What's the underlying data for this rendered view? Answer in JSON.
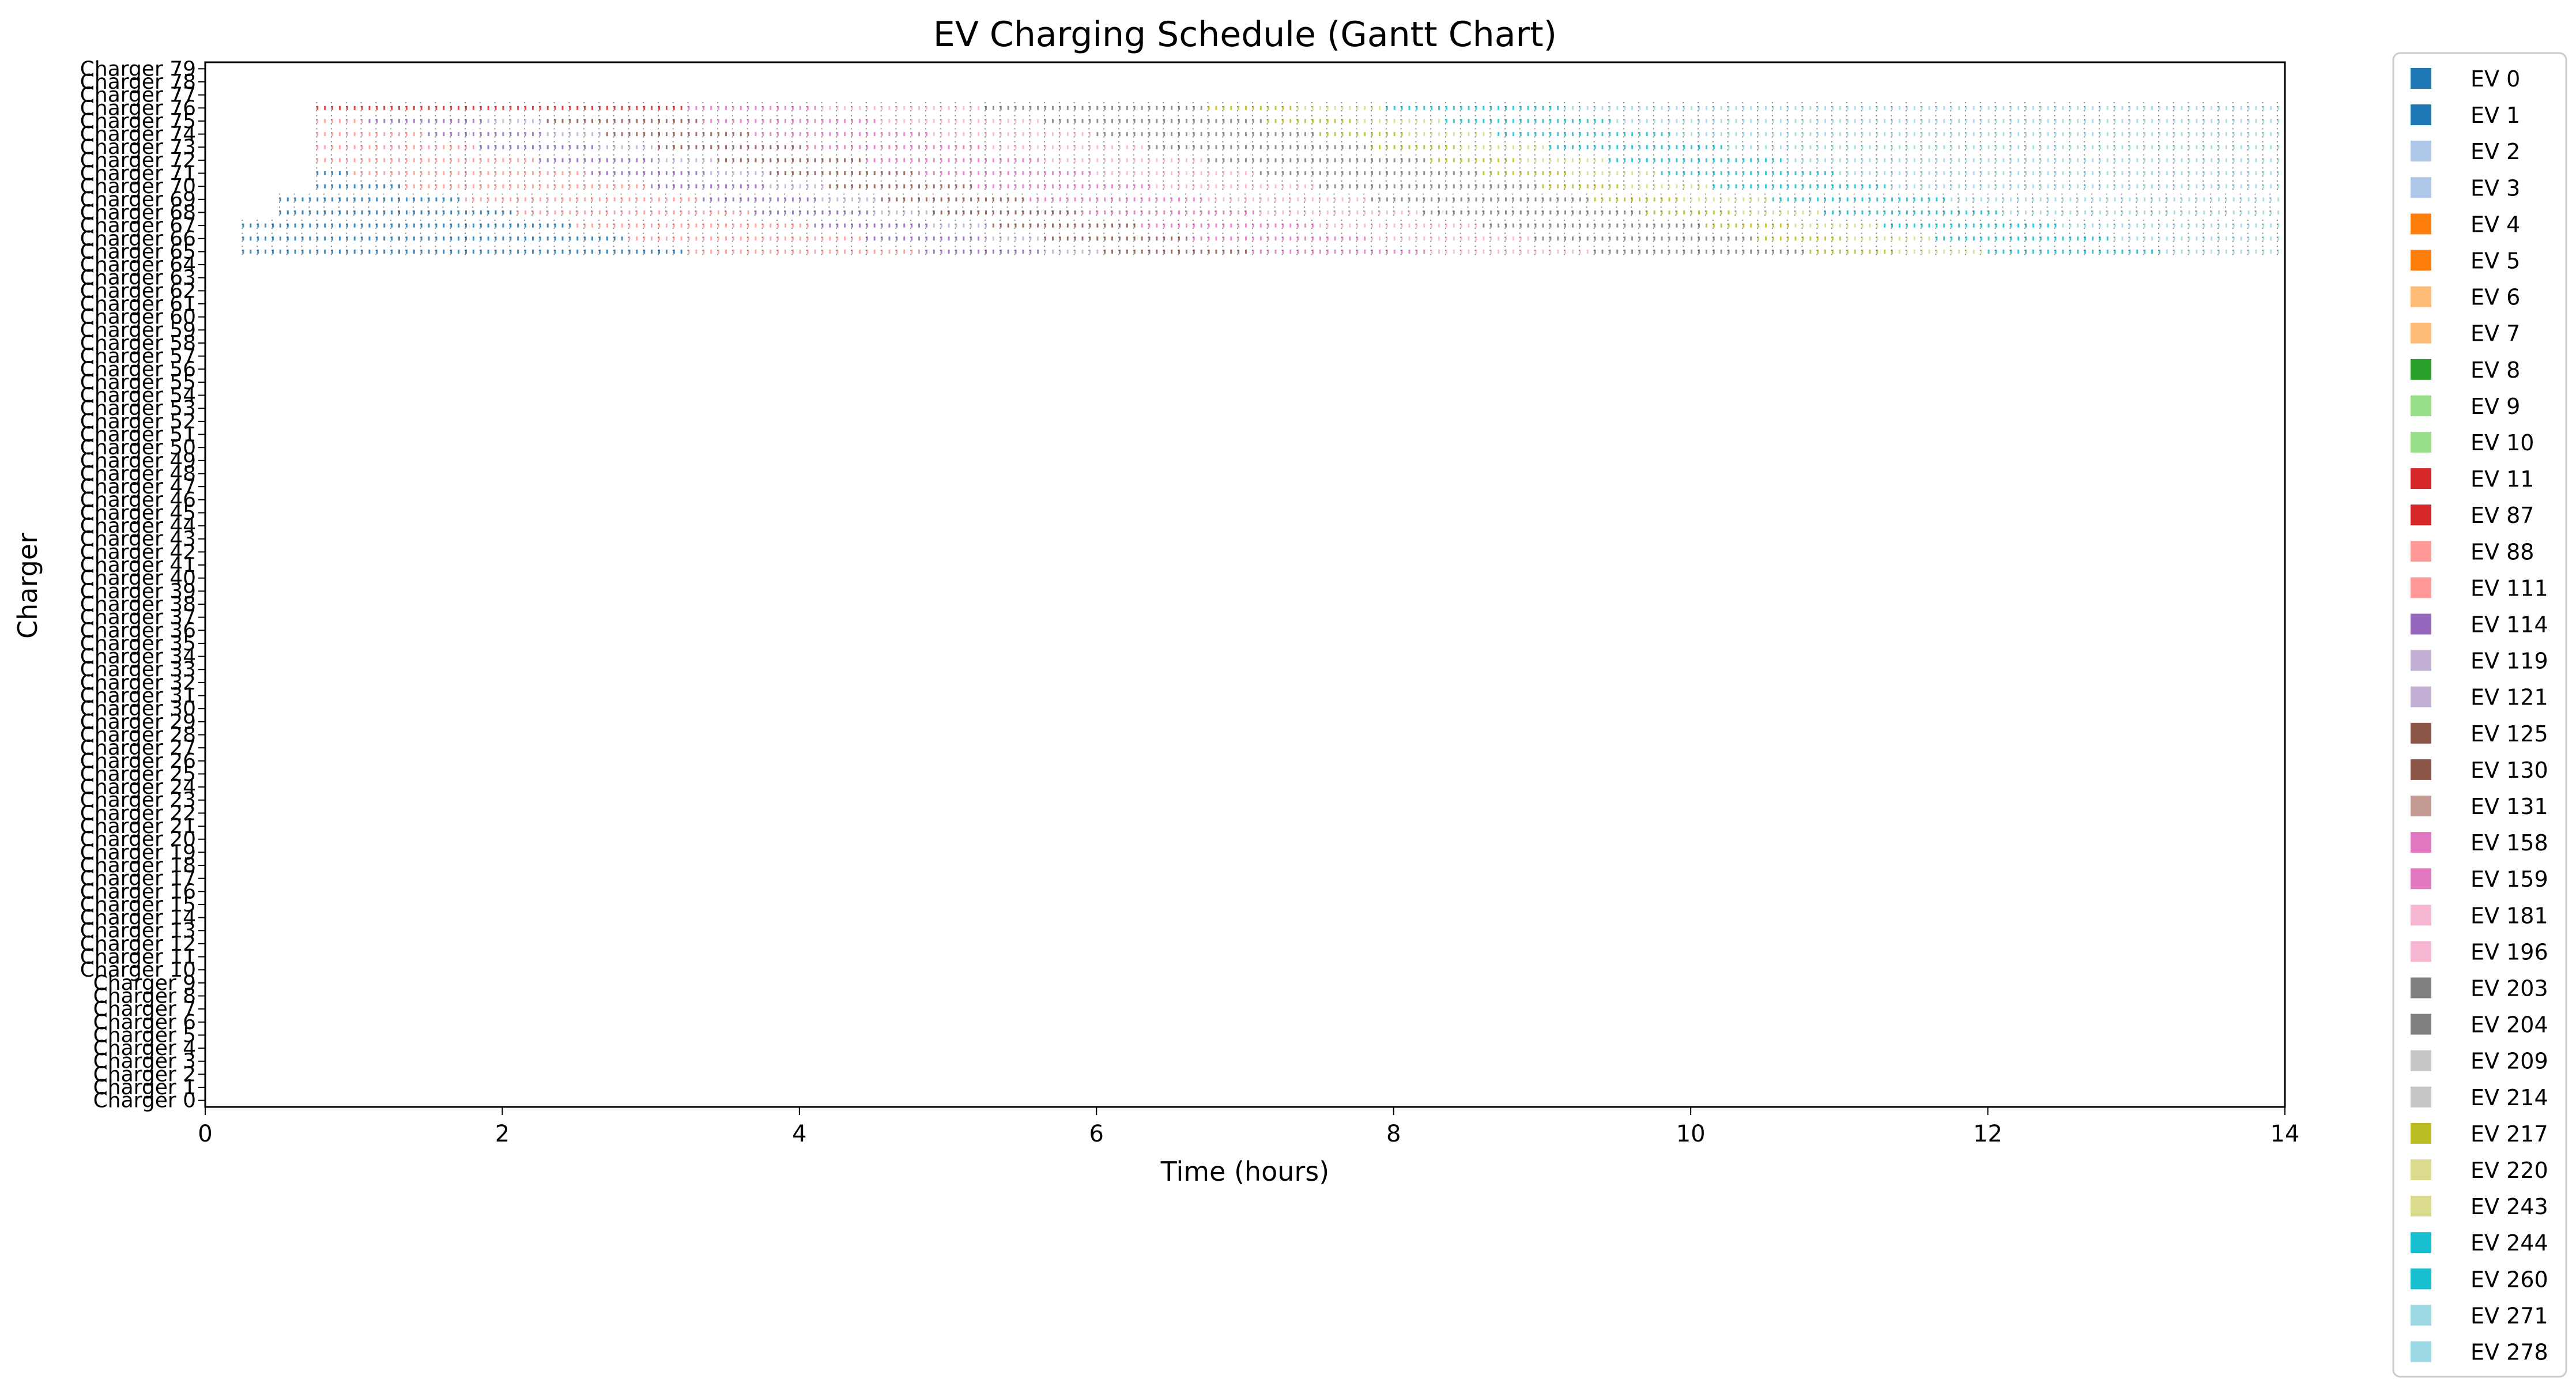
{
  "chart_data": {
    "type": "gantt",
    "title": "EV Charging Schedule (Gantt Chart)",
    "xlabel": "Time (hours)",
    "ylabel": "Charger",
    "xlim": [
      0,
      14
    ],
    "xticks": [
      0,
      2,
      4,
      6,
      8,
      10,
      12,
      14
    ],
    "charger_prefix": "Charger",
    "charger_count": 80,
    "legend_position": "outside-right",
    "legend": [
      {
        "label": "EV 0",
        "color": "#1f77b4"
      },
      {
        "label": "EV 1",
        "color": "#1f77b4"
      },
      {
        "label": "EV 2",
        "color": "#aec7e8"
      },
      {
        "label": "EV 3",
        "color": "#aec7e8"
      },
      {
        "label": "EV 4",
        "color": "#ff7f0e"
      },
      {
        "label": "EV 5",
        "color": "#ff7f0e"
      },
      {
        "label": "EV 6",
        "color": "#ffbb78"
      },
      {
        "label": "EV 7",
        "color": "#ffbb78"
      },
      {
        "label": "EV 8",
        "color": "#2ca02c"
      },
      {
        "label": "EV 9",
        "color": "#98df8a"
      },
      {
        "label": "EV 10",
        "color": "#98df8a"
      },
      {
        "label": "EV 11",
        "color": "#d62728"
      },
      {
        "label": "EV 87",
        "color": "#d62728"
      },
      {
        "label": "EV 88",
        "color": "#ff9896"
      },
      {
        "label": "EV 111",
        "color": "#ff9896"
      },
      {
        "label": "EV 114",
        "color": "#9467bd"
      },
      {
        "label": "EV 119",
        "color": "#c5b0d5"
      },
      {
        "label": "EV 121",
        "color": "#c5b0d5"
      },
      {
        "label": "EV 125",
        "color": "#8c564b"
      },
      {
        "label": "EV 130",
        "color": "#8c564b"
      },
      {
        "label": "EV 131",
        "color": "#c49c94"
      },
      {
        "label": "EV 158",
        "color": "#e377c2"
      },
      {
        "label": "EV 159",
        "color": "#e377c2"
      },
      {
        "label": "EV 181",
        "color": "#f7b6d2"
      },
      {
        "label": "EV 196",
        "color": "#f7b6d2"
      },
      {
        "label": "EV 203",
        "color": "#7f7f7f"
      },
      {
        "label": "EV 204",
        "color": "#7f7f7f"
      },
      {
        "label": "EV 209",
        "color": "#c7c7c7"
      },
      {
        "label": "EV 214",
        "color": "#c7c7c7"
      },
      {
        "label": "EV 217",
        "color": "#bcbd22"
      },
      {
        "label": "EV 220",
        "color": "#dbdb8d"
      },
      {
        "label": "EV 243",
        "color": "#dbdb8d"
      },
      {
        "label": "EV 244",
        "color": "#17becf"
      },
      {
        "label": "EV 260",
        "color": "#17becf"
      },
      {
        "label": "EV 271",
        "color": "#9edae5"
      },
      {
        "label": "EV 278",
        "color": "#9edae5"
      }
    ],
    "sessions": [
      {
        "charger": 65,
        "start": 0.25,
        "end": 14.0,
        "color": "#1f77b4"
      },
      {
        "charger": 66,
        "start": 0.25,
        "end": 14.0,
        "color": "#aec7e8"
      },
      {
        "charger": 67,
        "start": 0.25,
        "end": 14.0,
        "color": "#1f77b4"
      },
      {
        "charger": 68,
        "start": 0.5,
        "end": 14.0,
        "color": "#ffbb78"
      },
      {
        "charger": 69,
        "start": 0.5,
        "end": 14.0,
        "color": "#ff7f0e"
      },
      {
        "charger": 70,
        "start": 0.75,
        "end": 14.0,
        "color": "#ffbb78"
      },
      {
        "charger": 71,
        "start": 0.75,
        "end": 14.0,
        "color": "#98df8a"
      },
      {
        "charger": 72,
        "start": 0.75,
        "end": 14.0,
        "color": "#2ca02c"
      },
      {
        "charger": 73,
        "start": 0.75,
        "end": 14.0,
        "color": "#98df8a"
      },
      {
        "charger": 74,
        "start": 0.75,
        "end": 14.0,
        "color": "#ff9896"
      },
      {
        "charger": 75,
        "start": 0.75,
        "end": 14.0,
        "color": "#ff9896"
      },
      {
        "charger": 76,
        "start": 0.75,
        "end": 14.0,
        "color": "#d62728"
      }
    ],
    "segment_colors": [
      {
        "from": 0.25,
        "color": "#1f77b4"
      },
      {
        "from": 3.2,
        "color": "#ff9896"
      },
      {
        "from": 4.8,
        "color": "#9467bd"
      },
      {
        "from": 5.6,
        "color": "#c5b0d5"
      },
      {
        "from": 6.0,
        "color": "#8c564b"
      },
      {
        "from": 7.0,
        "color": "#e377c2"
      },
      {
        "from": 8.2,
        "color": "#f7b6d2"
      },
      {
        "from": 9.3,
        "color": "#7f7f7f"
      },
      {
        "from": 10.8,
        "color": "#bcbd22"
      },
      {
        "from": 11.4,
        "color": "#dbdb8d"
      },
      {
        "from": 12.0,
        "color": "#17becf"
      },
      {
        "from": 13.2,
        "color": "#9edae5"
      }
    ]
  }
}
